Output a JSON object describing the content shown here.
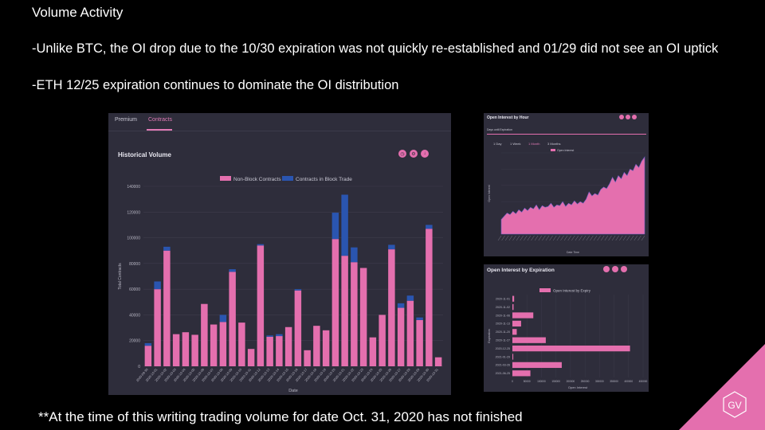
{
  "slide": {
    "title": "Volume Activity",
    "bullet1": "-Unlike BTC, the OI drop due to the 10/30 expiration was not quickly re-established and 01/29 did not see an OI uptick",
    "bullet2": "-ETH 12/25 expiration continues to dominate the OI distribution",
    "footnote": "**At the time of this writing trading volume for date Oct. 31, 2020 has not finished",
    "logo_text": "GV"
  },
  "main_panel": {
    "tabs": [
      "Premium",
      "Contracts"
    ],
    "active_tab": "Contracts",
    "card_title": "Historical Volume",
    "icons": [
      "clock-icon",
      "settings-icon",
      "download-icon"
    ]
  },
  "oi_hour": {
    "title": "Open Interest by Hour",
    "subtitle": "Days until Expiration",
    "ranges": [
      "1 Day",
      "1 Week",
      "1 Month",
      "3 Months"
    ],
    "active_range": "1 Month",
    "icons": [
      "clock-icon",
      "settings-icon",
      "download-icon"
    ]
  },
  "oi_exp": {
    "title": "Open Interest by Expiration",
    "icons": [
      "clock-icon",
      "settings-icon",
      "download-icon"
    ]
  },
  "colors": {
    "pink": "#e46fae",
    "blue": "#2a55b0",
    "panel": "#2e2d3b",
    "grid": "#3e3d4d"
  },
  "chart_data": [
    {
      "type": "bar",
      "stacked": true,
      "title": "Historical Volume",
      "xlabel": "Date",
      "ylabel": "Total Contracts",
      "ylim": [
        0,
        140000
      ],
      "yticks": [
        0,
        20000,
        40000,
        60000,
        80000,
        100000,
        120000,
        140000
      ],
      "legend": "top-center",
      "categories": [
        "2020-09-30",
        "2020-10-01",
        "2020-10-02",
        "2020-10-03",
        "2020-10-04",
        "2020-10-05",
        "2020-10-06",
        "2020-10-07",
        "2020-10-08",
        "2020-10-09",
        "2020-10-10",
        "2020-10-11",
        "2020-10-12",
        "2020-10-13",
        "2020-10-14",
        "2020-10-15",
        "2020-10-16",
        "2020-10-17",
        "2020-10-18",
        "2020-10-19",
        "2020-10-20",
        "2020-10-21",
        "2020-10-22",
        "2020-10-23",
        "2020-10-24",
        "2020-10-25",
        "2020-10-26",
        "2020-10-27",
        "2020-10-28",
        "2020-10-29",
        "2020-10-30",
        "2020-10-31"
      ],
      "tick_labels": [
        "2020-09-30",
        "2020-10-01",
        "2020-10-02",
        "2020-10-03",
        "2020-10-04",
        "2020-10-05",
        "2020-10-06",
        "2020-10-07",
        "2020-10-08",
        "2020-10-09",
        "2020-10-10",
        "2020-10-11",
        "2020-10-12",
        "2020-10-13",
        "2020-10-14",
        "2020-10-15",
        "2020-10-16",
        "2020-10-17",
        "2020-10-18",
        "2020-10-19",
        "2020-10-20",
        "2020-10-21",
        "2020-10-22",
        "2020-10-23",
        "2020-10-24",
        "2020-10-25",
        "2020-10-26",
        "2020-10-27",
        "2020-10-28",
        "2020-10-29",
        "2020-10-30",
        "2020-10-31"
      ],
      "series": [
        {
          "name": "Non-Block Contracts",
          "values": [
            16000,
            60000,
            90000,
            25000,
            26500,
            24500,
            48500,
            32500,
            34500,
            73500,
            34000,
            13500,
            94000,
            23000,
            23500,
            30500,
            59000,
            12500,
            31500,
            28000,
            99000,
            86000,
            81000,
            76500,
            22500,
            40000,
            91000,
            45500,
            51000,
            36000,
            107000,
            7000
          ]
        },
        {
          "name": "Contracts in Block Trade",
          "values": [
            2000,
            6000,
            3000,
            0,
            0,
            0,
            0,
            0,
            5500,
            2000,
            0,
            0,
            1000,
            1000,
            1500,
            0,
            1000,
            0,
            0,
            0,
            20500,
            47500,
            11500,
            0,
            0,
            0,
            3500,
            3500,
            4000,
            2000,
            3000,
            0
          ]
        }
      ]
    },
    {
      "type": "area",
      "title": "Open Interest by Hour",
      "xlabel": "Date Time",
      "ylabel": "Open Interest",
      "legend": "top-center",
      "series": [
        {
          "name": "Open Interest",
          "values": [
            0.18,
            0.22,
            0.26,
            0.24,
            0.28,
            0.25,
            0.3,
            0.27,
            0.32,
            0.29,
            0.33,
            0.31,
            0.36,
            0.3,
            0.35,
            0.33,
            0.34,
            0.38,
            0.33,
            0.36,
            0.35,
            0.4,
            0.34,
            0.38,
            0.36,
            0.41,
            0.37,
            0.4,
            0.38,
            0.43,
            0.52,
            0.47,
            0.5,
            0.48,
            0.55,
            0.58,
            0.56,
            0.62,
            0.7,
            0.64,
            0.72,
            0.68,
            0.76,
            0.72,
            0.8,
            0.78,
            0.86,
            0.82,
            0.9,
            0.95
          ]
        }
      ]
    },
    {
      "type": "bar",
      "orientation": "horizontal",
      "title": "Open Interest by Expiration",
      "xlabel": "Open Interest",
      "ylabel": "Expiration",
      "legend": "top-center",
      "xlim": [
        0,
        450000
      ],
      "xticks": [
        0,
        50000,
        100000,
        150000,
        200000,
        250000,
        300000,
        350000,
        400000,
        450000
      ],
      "categories": [
        "2020-11-01",
        "2020-11-02",
        "2020-11-06",
        "2020-11-13",
        "2020-11-20",
        "2020-11-27",
        "2020-12-25",
        "2021-01-29",
        "2021-03-26",
        "2021-06-25"
      ],
      "series": [
        {
          "name": "Open Interest by Expiry",
          "values": [
            6000,
            4000,
            72000,
            30000,
            15000,
            115000,
            405000,
            3000,
            170000,
            62000
          ]
        }
      ]
    }
  ]
}
